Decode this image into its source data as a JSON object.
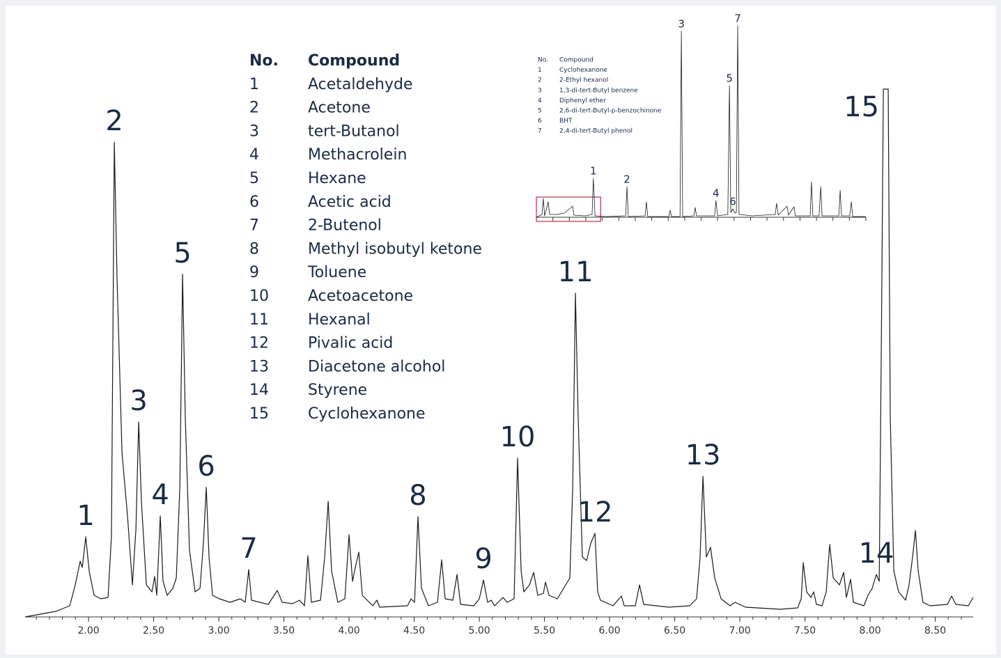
{
  "chart_data": [
    {
      "type": "line",
      "xlim": [
        1.513,
        8.791
      ],
      "ylim": [
        0,
        758
      ],
      "xticks": [
        {
          "value": 2,
          "label": "2.00"
        },
        {
          "value": 2.5,
          "label": "2.50"
        },
        {
          "value": 3,
          "label": "3.00"
        },
        {
          "value": 3.5,
          "label": "3.50"
        },
        {
          "value": 4,
          "label": "4.00"
        },
        {
          "value": 4.5,
          "label": "4.50"
        },
        {
          "value": 5,
          "label": "5.00"
        },
        {
          "value": 5.5,
          "label": "5.50"
        },
        {
          "value": 6,
          "label": "6.00"
        },
        {
          "value": 6.5,
          "label": "6.50"
        },
        {
          "value": 7,
          "label": "7.00"
        },
        {
          "value": 7.5,
          "label": "7.50"
        },
        {
          "value": 8,
          "label": "8.00"
        },
        {
          "value": 8.5,
          "label": "8.50"
        }
      ],
      "xminorticks": [
        1.6,
        1.7,
        1.8,
        1.9,
        2.0,
        2.1,
        2.2,
        2.3,
        2.4,
        2.5,
        2.6,
        2.7,
        2.8,
        2.9,
        3.0,
        3.1,
        3.2,
        3.3,
        3.4,
        3.5,
        3.6,
        3.7,
        3.8,
        3.9,
        4.0,
        4.1,
        4.2,
        4.3,
        4.4,
        4.5,
        4.6,
        4.7,
        4.8,
        4.9,
        5.0,
        5.1,
        5.2,
        5.3,
        5.4,
        5.5,
        5.6,
        5.7,
        5.8,
        5.9,
        6.0,
        6.1,
        6.2,
        6.3,
        6.4,
        6.5,
        6.6,
        6.7,
        6.8,
        6.9,
        7.0,
        7.1,
        7.2,
        7.3,
        7.4,
        7.5,
        7.6,
        7.7,
        7.8,
        7.9,
        8.0,
        8.1,
        8.2,
        8.3,
        8.4,
        8.5,
        8.6,
        8.7
      ],
      "show_tick_labels": true,
      "x": [
        1.513,
        1.749,
        1.856,
        1.898,
        1.936,
        1.952,
        1.979,
        2.005,
        2.043,
        2.096,
        2.15,
        2.176,
        2.198,
        2.219,
        2.257,
        2.299,
        2.337,
        2.364,
        2.385,
        2.406,
        2.444,
        2.487,
        2.508,
        2.524,
        2.551,
        2.572,
        2.604,
        2.647,
        2.674,
        2.701,
        2.722,
        2.743,
        2.775,
        2.818,
        2.856,
        2.882,
        2.904,
        2.925,
        2.952,
        3.005,
        3.086,
        3.166,
        3.203,
        3.23,
        3.251,
        3.38,
        3.449,
        3.487,
        3.567,
        3.62,
        3.658,
        3.684,
        3.711,
        3.781,
        3.813,
        3.84,
        3.866,
        3.914,
        3.968,
        4.0,
        4.027,
        4.048,
        4.075,
        4.102,
        4.182,
        4.214,
        4.235,
        4.449,
        4.476,
        4.503,
        4.529,
        4.556,
        4.61,
        4.679,
        4.711,
        4.738,
        4.797,
        4.829,
        4.856,
        4.957,
        5.0,
        5.032,
        5.064,
        5.091,
        5.118,
        5.182,
        5.214,
        5.267,
        5.294,
        5.321,
        5.342,
        5.385,
        5.417,
        5.449,
        5.492,
        5.508,
        5.535,
        5.599,
        5.663,
        5.695,
        5.717,
        5.738,
        5.759,
        5.791,
        5.824,
        5.856,
        5.888,
        5.909,
        5.93,
        6.027,
        6.091,
        6.112,
        6.198,
        6.23,
        6.262,
        6.455,
        6.615,
        6.668,
        6.695,
        6.717,
        6.743,
        6.775,
        6.807,
        6.856,
        6.925,
        6.963,
        7.043,
        7.31,
        7.444,
        7.471,
        7.487,
        7.513,
        7.545,
        7.567,
        7.588,
        7.631,
        7.663,
        7.69,
        7.717,
        7.765,
        7.797,
        7.818,
        7.85,
        7.872,
        7.952,
        7.984,
        8.016,
        8.048,
        8.07,
        8.086,
        8.102,
        8.139,
        8.155,
        8.182,
        8.219,
        8.273,
        8.299,
        8.326,
        8.348,
        8.369,
        8.406,
        8.46,
        8.594,
        8.626,
        8.658,
        8.754,
        8.791
      ],
      "series": [
        {
          "color": "#1a1a1a",
          "values": [
            0,
            8,
            16,
            46,
            80,
            71,
            115,
            66,
            31,
            26,
            28,
            116,
            682,
            486,
            236,
            146,
            46,
            126,
            280,
            166,
            46,
            36,
            58,
            31,
            145,
            51,
            31,
            41,
            56,
            186,
            492,
            286,
            96,
            36,
            41,
            106,
            186,
            86,
            31,
            26,
            21,
            26,
            21,
            68,
            24,
            18,
            38,
            21,
            19,
            24,
            16,
            88,
            21,
            24,
            86,
            166,
            66,
            21,
            26,
            118,
            51,
            71,
            93,
            31,
            16,
            24,
            14,
            16,
            26,
            21,
            144,
            41,
            16,
            21,
            82,
            26,
            24,
            61,
            18,
            16,
            26,
            53,
            21,
            24,
            16,
            28,
            21,
            26,
            228,
            66,
            36,
            46,
            64,
            31,
            34,
            50,
            31,
            26,
            46,
            56,
            186,
            465,
            286,
            86,
            81,
            106,
            120,
            36,
            24,
            16,
            30,
            16,
            16,
            46,
            18,
            14,
            16,
            26,
            86,
            202,
            86,
            100,
            56,
            26,
            16,
            21,
            14,
            11,
            13,
            26,
            78,
            36,
            28,
            36,
            18,
            16,
            36,
            104,
            56,
            46,
            64,
            28,
            54,
            21,
            16,
            31,
            41,
            61,
            51,
            386,
            758,
            758,
            286,
            66,
            36,
            24,
            46,
            86,
            124,
            66,
            21,
            16,
            18,
            30,
            18,
            16,
            28
          ]
        }
      ],
      "peaks": [
        {
          "label": 1,
          "x": 1.979
        },
        {
          "label": 2,
          "x": 2.198
        },
        {
          "label": 3,
          "x": 2.385
        },
        {
          "label": 4,
          "x": 2.551
        },
        {
          "label": 5,
          "x": 2.722
        },
        {
          "label": 6,
          "x": 2.904
        },
        {
          "label": 7,
          "x": 3.23
        },
        {
          "label": 8,
          "x": 4.529
        },
        {
          "label": 9,
          "x": 5.032
        },
        {
          "label": 10,
          "x": 5.294
        },
        {
          "label": 11,
          "x": 5.738
        },
        {
          "label": 12,
          "x": 5.888
        },
        {
          "label": 13,
          "x": 6.717
        },
        {
          "label": 14,
          "x": 8.048
        },
        {
          "label": 15,
          "x": 8.102
        }
      ],
      "table": {
        "header": [
          "No.",
          "Compound"
        ],
        "rows": [
          [
            1,
            "Acetaldehyde"
          ],
          [
            2,
            "Acetone"
          ],
          [
            3,
            "tert-Butanol"
          ],
          [
            4,
            "Methacrolein"
          ],
          [
            5,
            "Hexane"
          ],
          [
            6,
            "Acetic acid"
          ],
          [
            7,
            "2-Butenol"
          ],
          [
            8,
            "Methyl isobutyl ketone"
          ],
          [
            9,
            "Toluene"
          ],
          [
            10,
            "Acetoacetone"
          ],
          [
            11,
            "Hexanal"
          ],
          [
            12,
            "Pivalic acid"
          ],
          [
            13,
            "Diacetone alcohol"
          ],
          [
            14,
            "Styrene"
          ],
          [
            15,
            "Cyclohexanone"
          ]
        ]
      }
    },
    {
      "type": "line",
      "xlim": [
        0,
        100
      ],
      "ylim": [
        0,
        280
      ],
      "xticks": [
        0,
        5,
        10,
        15,
        20,
        25,
        30,
        35,
        40,
        45,
        50,
        55,
        60,
        65,
        70,
        75,
        80,
        85,
        90,
        95,
        100
      ],
      "show_tick_labels": false,
      "x": [
        0.0,
        1.7,
        2.1,
        2.5,
        3.6,
        4.0,
        6.3,
        8.5,
        11.0,
        11.4,
        14.8,
        16.9,
        17.3,
        17.8,
        21.1,
        27.1,
        27.5,
        27.9,
        33.0,
        33.4,
        33.8,
        40.2,
        40.6,
        41.0,
        43.6,
        44.0,
        44.4,
        47.8,
        48.2,
        48.6,
        54.1,
        54.5,
        55.0,
        58.1,
        58.6,
        59.0,
        59.6,
        60.3,
        60.7,
        61.1,
        61.5,
        65.5,
        72.5,
        72.9,
        73.4,
        76.1,
        76.5,
        78.2,
        78.6,
        83.1,
        83.5,
        83.9,
        85.8,
        86.3,
        86.7,
        91.8,
        92.2,
        92.6,
        95.1,
        95.6,
        96.0,
        100.0
      ],
      "series": [
        {
          "color": "#1a1a1a",
          "values": [
            0,
            4,
            27,
            2,
            22,
            4,
            4,
            6,
            16,
            3,
            2,
            4,
            56,
            2,
            1,
            2,
            44,
            1,
            2,
            22,
            1,
            1,
            10,
            1,
            1,
            267,
            1,
            2,
            14,
            2,
            2,
            24,
            2,
            4,
            189,
            7,
            12,
            6,
            7,
            275,
            4,
            2,
            4,
            20,
            3,
            16,
            3,
            15,
            2,
            2,
            51,
            2,
            2,
            44,
            2,
            2,
            39,
            2,
            2,
            22,
            1,
            1
          ]
        }
      ],
      "peaks": [
        {
          "label": 1,
          "x": 17.3
        },
        {
          "label": 2,
          "x": 27.5
        },
        {
          "label": 3,
          "x": 44.0
        },
        {
          "label": 4,
          "x": 54.5
        },
        {
          "label": 5,
          "x": 58.6
        },
        {
          "label": 6,
          "x": 59.6
        },
        {
          "label": 7,
          "x": 61.1
        }
      ],
      "zoom_box": {
        "xlim": [
          0,
          19.5
        ],
        "color": "#b5304a"
      },
      "table": {
        "header": [
          "No.",
          "Compound"
        ],
        "rows": [
          [
            1,
            "Cyclohexanone"
          ],
          [
            2,
            "2-Ethyl hexanol"
          ],
          [
            3,
            "1,3-di-tert-Butyl benzene"
          ],
          [
            4,
            "Diphenyl ether"
          ],
          [
            5,
            "2,6-di-tert-Butyl-p-benzochinone"
          ],
          [
            6,
            "BHT"
          ],
          [
            7,
            "2,4-di-tert-Butyl phenol"
          ]
        ]
      }
    }
  ]
}
